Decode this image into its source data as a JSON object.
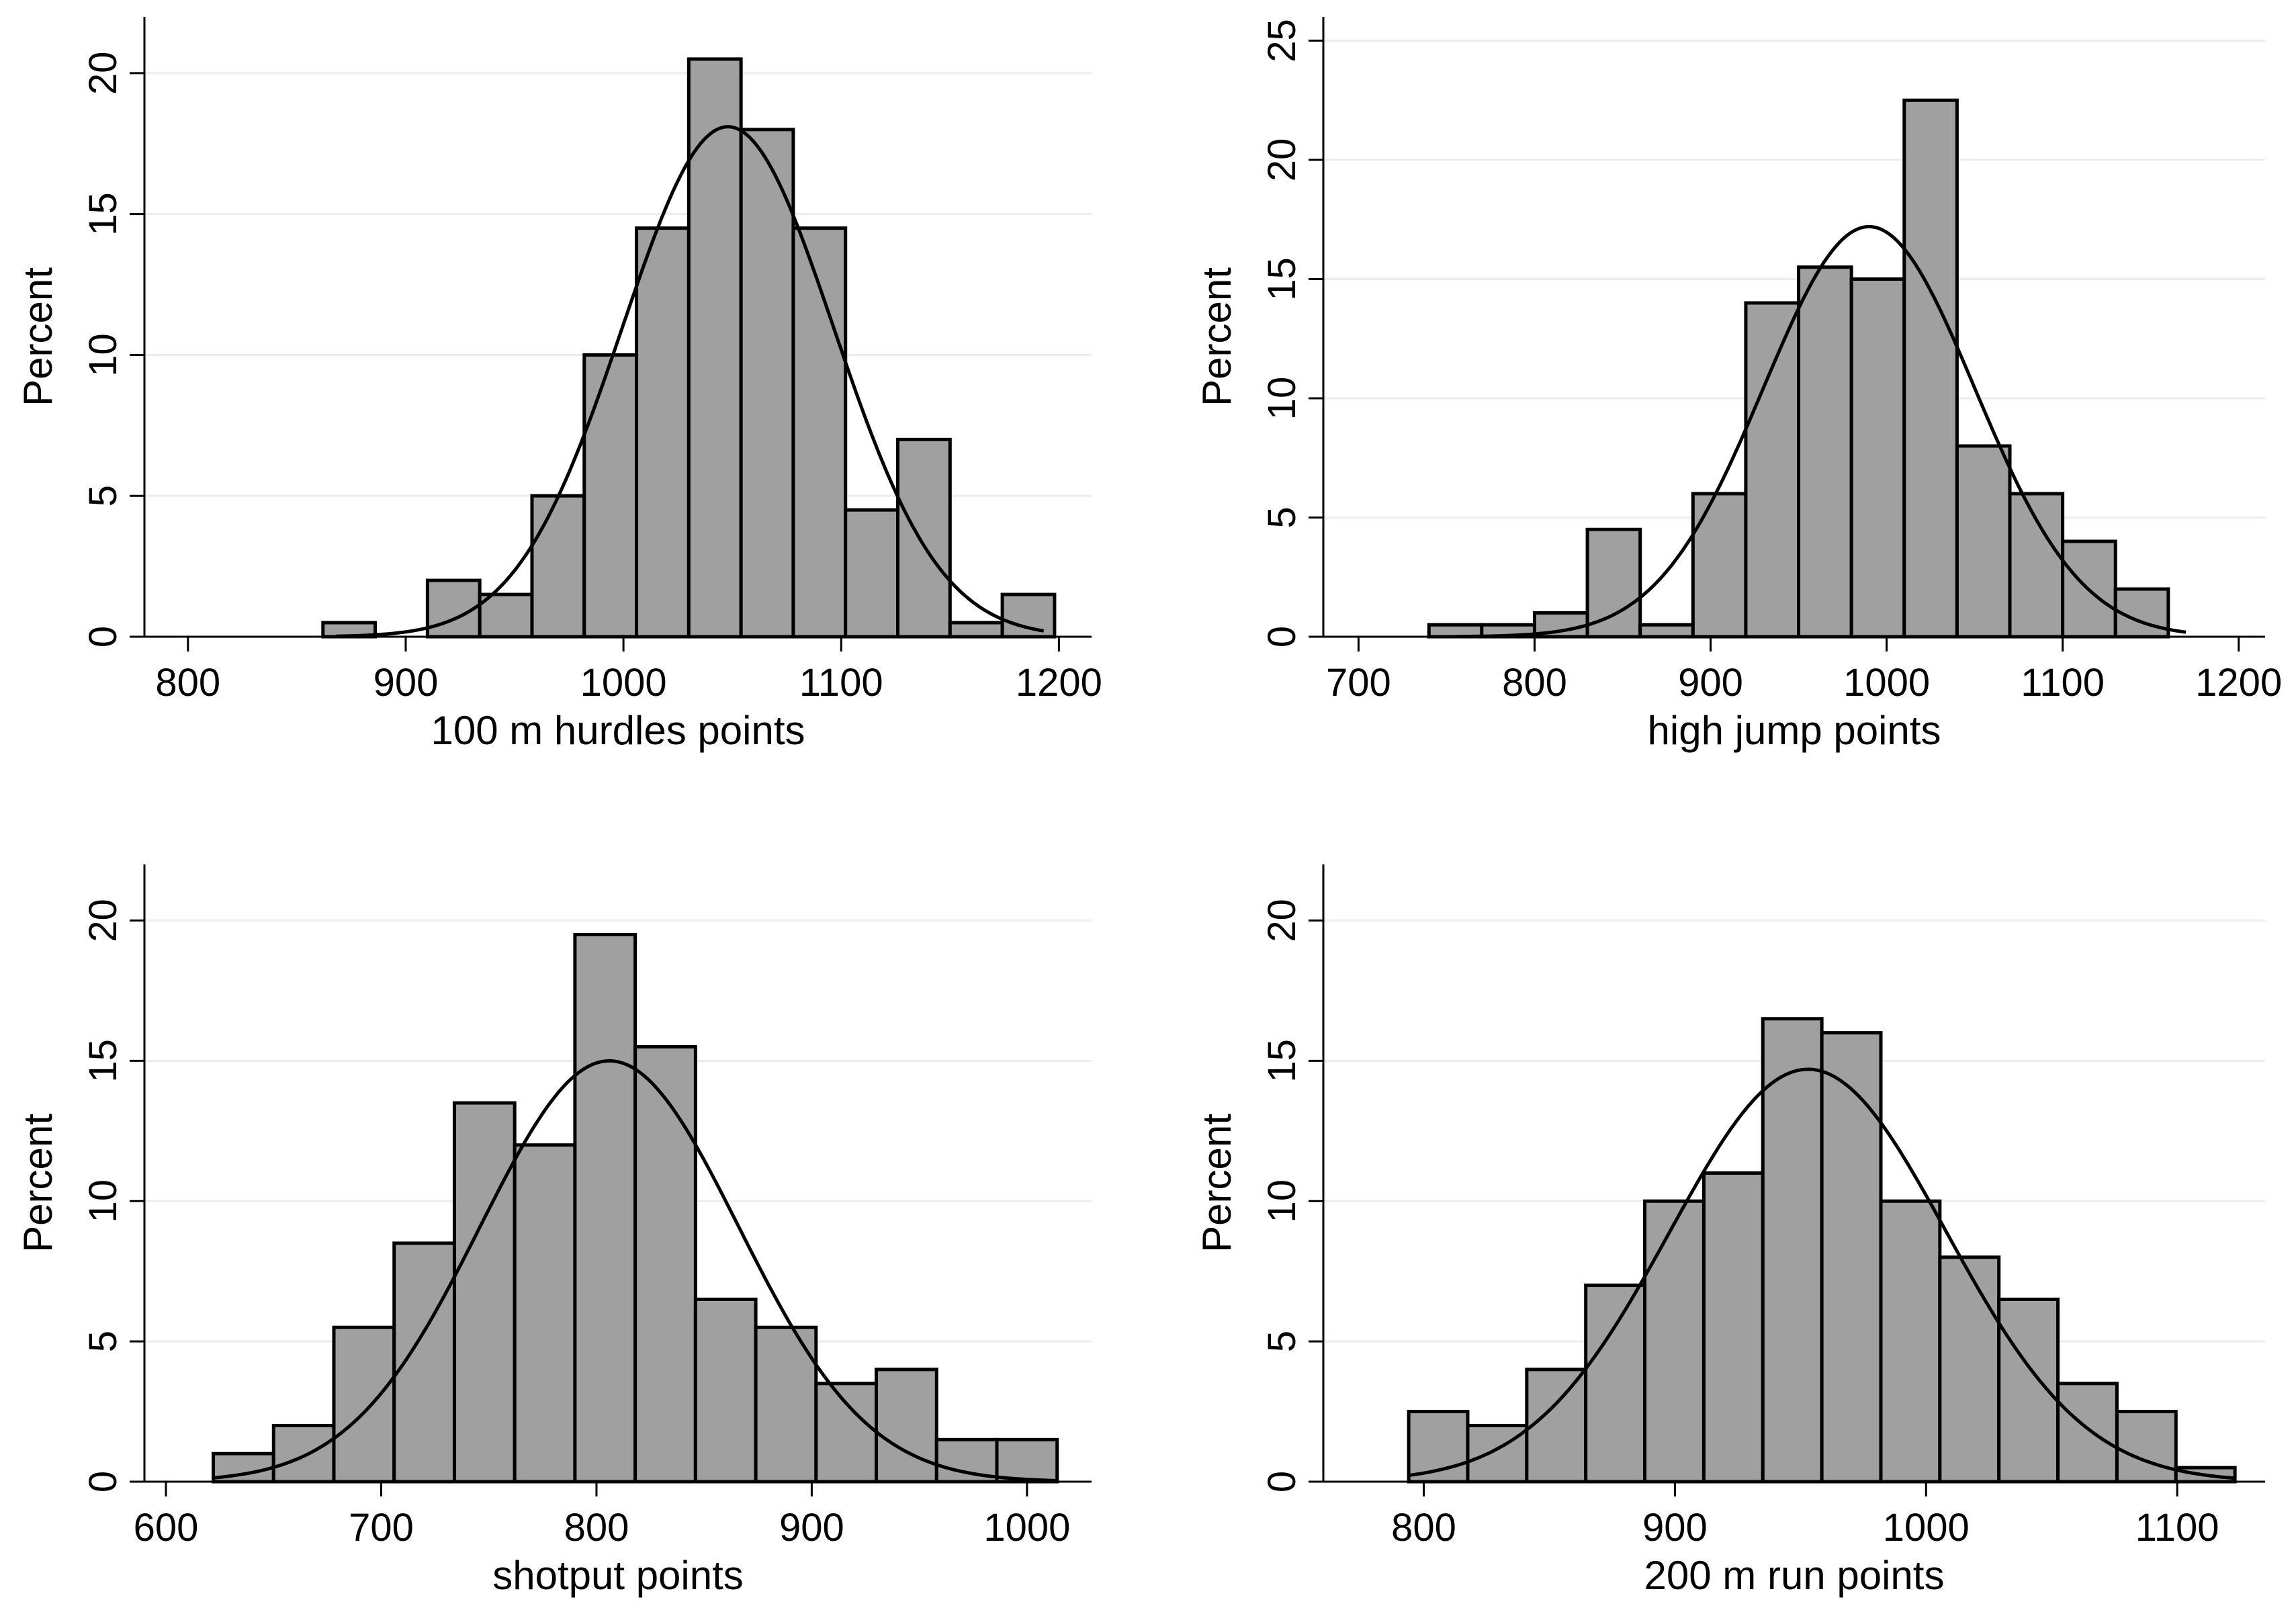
{
  "chart_data": [
    {
      "type": "bar",
      "subtype": "histogram-with-normal-curve",
      "title": "",
      "xlabel": "100 m hurdles points",
      "ylabel": "Percent",
      "xlim": [
        780,
        1215
      ],
      "ylim": [
        0,
        22
      ],
      "xticks": [
        800,
        900,
        1000,
        1100,
        1200
      ],
      "yticks": [
        0,
        5,
        10,
        15,
        20
      ],
      "grid": true,
      "bin_edges": [
        862,
        886,
        910,
        934,
        958,
        982,
        1006,
        1030,
        1054,
        1078,
        1102,
        1126,
        1150,
        1174,
        1198
      ],
      "values": [
        0.5,
        0,
        2,
        1.5,
        5,
        10,
        14.5,
        20.5,
        18,
        14.5,
        4.5,
        7,
        0.5,
        1.5
      ],
      "normal_curve": {
        "mean": 1048,
        "sd": 48.5,
        "peak": 18.1,
        "x_range": [
          868,
          1193
        ]
      }
    },
    {
      "type": "bar",
      "subtype": "histogram-with-normal-curve",
      "title": "",
      "xlabel": "high jump points",
      "ylabel": "Percent",
      "xlim": [
        680,
        1215
      ],
      "ylim": [
        0,
        26
      ],
      "xticks": [
        700,
        800,
        900,
        1000,
        1100,
        1200
      ],
      "yticks": [
        0,
        5,
        10,
        15,
        20,
        25
      ],
      "grid": true,
      "bin_edges": [
        740,
        770,
        800,
        830,
        860,
        890,
        920,
        950,
        980,
        1010,
        1040,
        1070,
        1100,
        1130,
        1160
      ],
      "values": [
        0.5,
        0.5,
        1,
        4.5,
        0.5,
        6,
        14,
        15.5,
        15,
        22.5,
        8,
        6,
        4,
        2
      ],
      "normal_curve": {
        "mean": 990,
        "sd": 60,
        "peak": 17.2,
        "x_range": [
          755,
          1170
        ]
      }
    },
    {
      "type": "bar",
      "subtype": "histogram-with-normal-curve",
      "title": "",
      "xlabel": "shotput points",
      "ylabel": "Percent",
      "xlim": [
        590,
        1030
      ],
      "ylim": [
        0,
        22
      ],
      "xticks": [
        600,
        700,
        800,
        900,
        1000
      ],
      "yticks": [
        0,
        5,
        10,
        15,
        20
      ],
      "grid": true,
      "bin_edges": [
        622,
        650,
        678,
        706,
        734,
        762,
        790,
        818,
        846,
        874,
        902,
        930,
        958,
        986,
        1014
      ],
      "values": [
        1,
        2,
        5.5,
        8.5,
        13.5,
        12,
        19.5,
        15.5,
        6.5,
        5.5,
        3.5,
        4,
        1.5,
        1.5
      ],
      "normal_curve": {
        "mean": 806,
        "sd": 60,
        "peak": 15,
        "x_range": [
          622,
          1014
        ]
      }
    },
    {
      "type": "bar",
      "subtype": "histogram-with-normal-curve",
      "title": "",
      "xlabel": "200 m run points",
      "ylabel": "Percent",
      "xlim": [
        760,
        1135
      ],
      "ylim": [
        0,
        22
      ],
      "xticks": [
        800,
        900,
        1000,
        1100
      ],
      "yticks": [
        0,
        5,
        10,
        15,
        20
      ],
      "grid": true,
      "bin_edges": [
        794,
        817.5,
        841,
        864.5,
        888,
        911.5,
        935,
        958.5,
        982,
        1005.5,
        1029,
        1052.5,
        1076,
        1099.5,
        1123
      ],
      "values": [
        2.5,
        2,
        4,
        7,
        10,
        11,
        16.5,
        16,
        10,
        8,
        6.5,
        3.5,
        2.5,
        0.5
      ],
      "normal_curve": {
        "mean": 953,
        "sd": 55,
        "peak": 14.7,
        "x_range": [
          794,
          1123
        ]
      }
    }
  ]
}
